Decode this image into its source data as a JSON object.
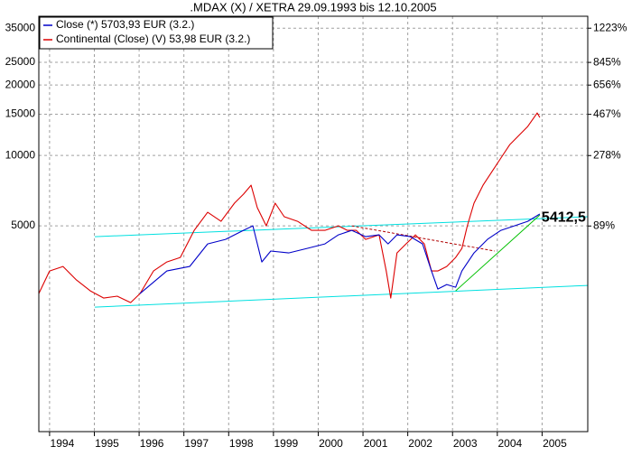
{
  "chart_data": {
    "type": "line",
    "title": ".MDAX (X) / XETRA 29.09.1993 bis 12.10.2005",
    "log_scale": true,
    "grid": true,
    "legend": "upper left",
    "xlim": [
      1993.76,
      2006.02
    ],
    "xticks": [
      1994,
      1995,
      1996,
      1997,
      1998,
      1999,
      2000,
      2001,
      2002,
      2003,
      2004,
      2005
    ],
    "ylim": [
      659,
      39360
    ],
    "yticks": [
      5000,
      10000,
      15000,
      20000,
      25000,
      35000
    ],
    "y2log": true,
    "y2lim": [
      -75,
      1388
    ],
    "y2ticks": [
      {
        "value": 89,
        "label": "89%"
      },
      {
        "value": 278,
        "label": "278%"
      },
      {
        "value": 467,
        "label": "467%"
      },
      {
        "value": 656,
        "label": "656%"
      },
      {
        "value": 845,
        "label": "845%"
      },
      {
        "value": 1223,
        "label": "1223%"
      }
    ],
    "series": [
      {
        "name": "Close (*) 5703,93 EUR (3.2.)",
        "color": "#0000c8",
        "x": [
          1996.02,
          1996.62,
          1997.13,
          1997.53,
          1997.93,
          1998.33,
          1998.54,
          1998.74,
          1998.94,
          1999.34,
          1999.75,
          2000.15,
          2000.45,
          2000.75,
          2001.06,
          2001.36,
          2001.56,
          2001.76,
          2002.06,
          2002.33,
          2002.53,
          2002.67,
          2002.87,
          2003.07,
          2003.21,
          2003.48,
          2003.78,
          2004.08,
          2004.38,
          2004.68,
          2004.95
        ],
        "values": [
          2567,
          3206,
          3351,
          4184,
          4375,
          4782,
          5000,
          3503,
          3899,
          3829,
          4003,
          4184,
          4573,
          4782,
          4494,
          4573,
          4184,
          4573,
          4494,
          4184,
          3206,
          2683,
          2805,
          2732,
          3206,
          3829,
          4375,
          4782,
          5000,
          5228,
          5617
        ]
      },
      {
        "name": "Continental (Close) (V) 53,98 EUR (3.2.)",
        "color": "#dc0000",
        "x": [
          1993.76,
          1994.0,
          1994.3,
          1994.6,
          1994.91,
          1995.21,
          1995.51,
          1995.81,
          1996.02,
          1996.32,
          1996.62,
          1996.92,
          1997.23,
          1997.53,
          1997.83,
          1998.13,
          1998.33,
          1998.5,
          1998.64,
          1998.84,
          1999.04,
          1999.24,
          1999.54,
          1999.85,
          2000.15,
          2000.45,
          2000.65,
          2000.85,
          2001.06,
          2001.36,
          2001.52,
          2001.62,
          2001.76,
          2001.96,
          2002.17,
          2002.37,
          2002.53,
          2002.67,
          2002.87,
          2003.07,
          2003.21,
          2003.33,
          2003.48,
          2003.68,
          2003.88,
          2004.08,
          2004.28,
          2004.48,
          2004.68,
          2004.89,
          2004.95
        ],
        "values": [
          2567,
          3206,
          3351,
          2933,
          2636,
          2455,
          2500,
          2348,
          2567,
          3206,
          3503,
          3662,
          4782,
          5714,
          5228,
          6246,
          6826,
          7461,
          5975,
          5000,
          6246,
          5466,
          5228,
          4782,
          4782,
          5000,
          4782,
          4782,
          4375,
          4573,
          3206,
          2455,
          3829,
          4184,
          4573,
          4184,
          3206,
          3206,
          3351,
          3662,
          4003,
          5000,
          6246,
          7461,
          8525,
          9743,
          11129,
          12163,
          13296,
          15191,
          14528
        ]
      }
    ],
    "trendlines": [
      {
        "color": "#00e0e0",
        "x": [
          1995.01,
          2006.02
        ],
        "values": [
          4494,
          5466
        ]
      },
      {
        "color": "#00e0e0",
        "x": [
          1995.01,
          2006.02
        ],
        "values": [
          2246,
          2781
        ]
      },
      {
        "color": "#00c000",
        "x": [
          2003.07,
          2004.95
        ],
        "values": [
          2636,
          5562
        ]
      },
      {
        "color": "#b00000",
        "dashed": true,
        "x": [
          2000.75,
          2003.94
        ],
        "values": [
          5000,
          3899
        ]
      }
    ],
    "annotation": {
      "text": "5412,5",
      "color": "#00dd00",
      "x": 2004.95,
      "value": 5412.5
    }
  }
}
